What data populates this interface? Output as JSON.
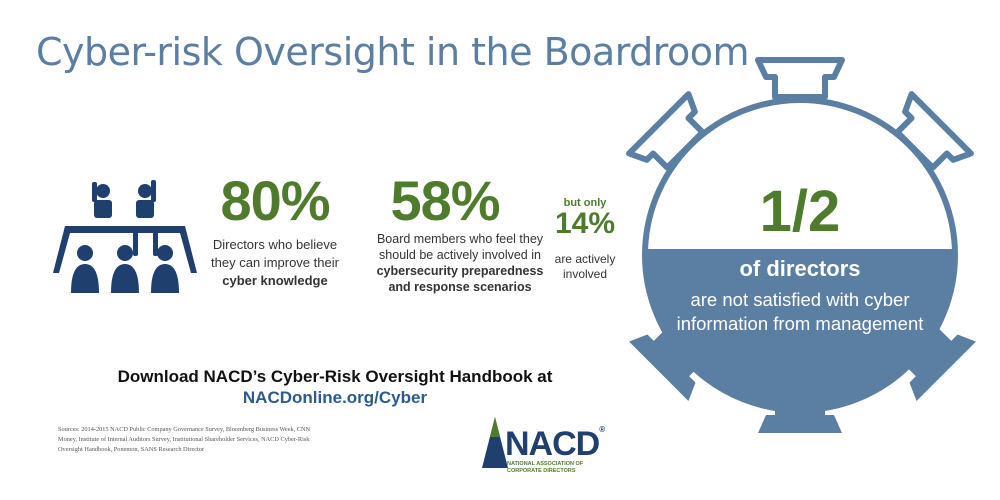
{
  "title": "Cyber-risk Oversight in the Boardroom",
  "colors": {
    "title": "#5b7ea3",
    "accent_green": "#4f7b2c",
    "table_blue": "#5b7ea3",
    "icon_navy": "#1f3f6e"
  },
  "stat1": {
    "value": "80%",
    "text_a": "Directors who believe they can improve their",
    "text_b": "cyber knowledge"
  },
  "stat2": {
    "value": "58%",
    "text_a": "Board members who feel they should be actively involved in",
    "text_b": "cybersecurity preparedness and response scenarios"
  },
  "stat3": {
    "lead": "but only",
    "value": "14%",
    "text": "are actively involved"
  },
  "circle": {
    "value": "1/2",
    "line1": "of directors",
    "line2": "are not satisfied with cyber information from management"
  },
  "download": {
    "text": "Download NACD’s Cyber-Risk Oversight Handbook at",
    "url": "NACDonline.org/Cyber"
  },
  "sources": "Sources: 2014-2015 NACD Public Company Governance Survey, Bloomberg Business Week, CNN Money, Institute of Internal Auditors Survey, Institutional Shareholder Services, NACD Cyber-Risk Oversight Handbook, Ponemon, SANS Research Director",
  "logo": {
    "text": "NACD",
    "reg": "®",
    "sub1": "NATIONAL ASSOCIATION OF",
    "sub2": "CORPORATE DIRECTORS"
  },
  "icons": [
    "boardroom-people-icon",
    "boardroom-table-icon",
    "nacd-logo-icon"
  ]
}
